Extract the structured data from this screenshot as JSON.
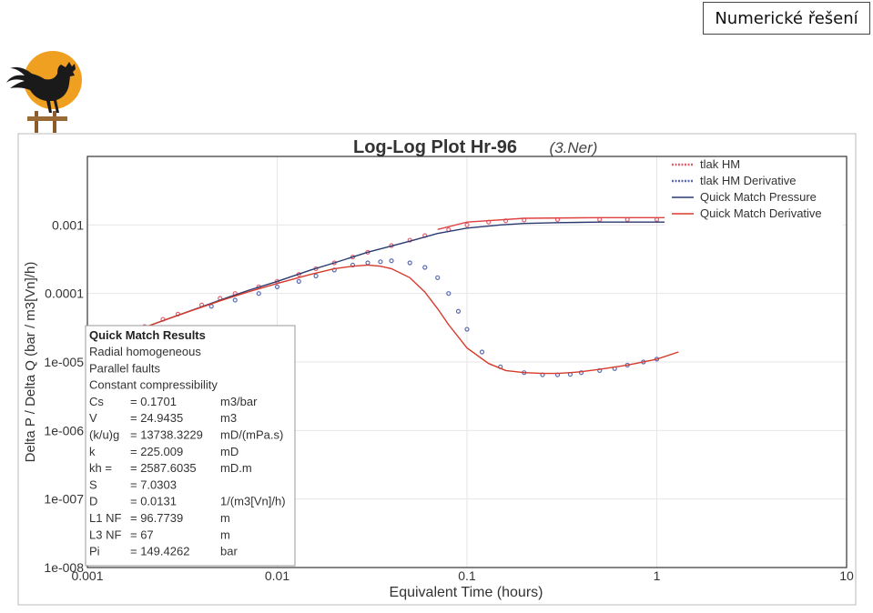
{
  "badge": {
    "label": "Numerické řešení"
  },
  "logo": {
    "icon": "rooster-sun-logo",
    "sun_color": "#F0A020",
    "bird_color": "#1a1a1a"
  },
  "colors": {
    "pressure_hm": "#e06070",
    "derivative_hm": "#5a6ab0",
    "qm_pressure": "#2a3a70",
    "qm_derivative": "#d63a2a",
    "frame": "#333333",
    "outer_border": "#bbbbbb"
  },
  "chart_data": {
    "type": "line",
    "title": "Log-Log Plot Hr-96",
    "title_annotation": "(3.Ner)",
    "xlabel": "Equivalent Time (hours)",
    "ylabel": "Delta P / Delta Q (bar / m3[Vn]/h)",
    "x_scale": "log",
    "y_scale": "log",
    "xlim": [
      0.001,
      10
    ],
    "ylim": [
      1e-08,
      0.01
    ],
    "x_ticks": [
      {
        "value": 0.001,
        "label": "0.001"
      },
      {
        "value": 0.01,
        "label": "0.01"
      },
      {
        "value": 0.1,
        "label": "0.1"
      },
      {
        "value": 1,
        "label": "1"
      },
      {
        "value": 10,
        "label": "10"
      }
    ],
    "y_ticks": [
      {
        "value": 0.001,
        "label": "0.001"
      },
      {
        "value": 0.0001,
        "label": "0.0001"
      },
      {
        "value": 1e-05,
        "label": "1e-005"
      },
      {
        "value": 1e-06,
        "label": "1e-006"
      },
      {
        "value": 1e-07,
        "label": "1e-007"
      },
      {
        "value": 1e-08,
        "label": "1e-008"
      }
    ],
    "grid": true,
    "legend_placement": "top-right",
    "legend": [
      "tlak HM",
      "tlak HM Derivative",
      "Quick Match Pressure",
      "Quick Match Derivative"
    ],
    "series": [
      {
        "name": "tlak HM",
        "style": "markers",
        "x": [
          0.0015,
          0.002,
          0.0025,
          0.003,
          0.004,
          0.005,
          0.006,
          0.008,
          0.01,
          0.013,
          0.016,
          0.02,
          0.025,
          0.03,
          0.04,
          0.05,
          0.06,
          0.08,
          0.1,
          0.13,
          0.16,
          0.2,
          0.3,
          0.5,
          0.7,
          1.0,
          1.3
        ],
        "y": [
          2.5e-05,
          3.3e-05,
          4.2e-05,
          5e-05,
          6.8e-05,
          8.5e-05,
          0.0001,
          0.000125,
          0.00015,
          0.00019,
          0.00023,
          0.00028,
          0.00034,
          0.0004,
          0.0005,
          0.0006,
          0.0007,
          0.00085,
          0.001,
          0.0011,
          0.00115,
          0.00118,
          0.0012,
          0.0012,
          0.0012,
          0.0012,
          0.0012
        ]
      },
      {
        "name": "tlak HM Derivative",
        "style": "markers",
        "x": [
          0.0045,
          0.006,
          0.008,
          0.01,
          0.013,
          0.016,
          0.02,
          0.025,
          0.03,
          0.035,
          0.04,
          0.05,
          0.06,
          0.07,
          0.08,
          0.09,
          0.1,
          0.12,
          0.15,
          0.2,
          0.25,
          0.3,
          0.35,
          0.4,
          0.5,
          0.6,
          0.7,
          0.85,
          1.0
        ],
        "y": [
          6.5e-05,
          8e-05,
          0.0001,
          0.000125,
          0.00015,
          0.00018,
          0.00022,
          0.00026,
          0.00028,
          0.00029,
          0.0003,
          0.00028,
          0.00024,
          0.00017,
          0.0001,
          5.5e-05,
          3e-05,
          1.4e-05,
          8.5e-06,
          7e-06,
          6.5e-06,
          6.5e-06,
          6.6e-06,
          7e-06,
          7.5e-06,
          8e-06,
          9e-06,
          1e-05,
          1.1e-05
        ]
      },
      {
        "name": "Quick Match Pressure",
        "style": "line",
        "x": [
          0.0015,
          0.002,
          0.003,
          0.005,
          0.007,
          0.01,
          0.015,
          0.02,
          0.03,
          0.05,
          0.07,
          0.1,
          0.15,
          0.2,
          0.3,
          0.5,
          1.0,
          2.0,
          5.0,
          9.5
        ],
        "y": [
          2.4e-05,
          3.2e-05,
          4.8e-05,
          8e-05,
          0.00011,
          0.00015,
          0.00022,
          0.00028,
          0.0004,
          0.00058,
          0.00075,
          0.0009,
          0.001,
          0.00105,
          0.00108,
          0.0011,
          0.0011,
          0.0011,
          0.0011,
          0.0011
        ]
      },
      {
        "name": "Quick Match Derivative",
        "style": "line",
        "x": [
          0.0015,
          0.002,
          0.003,
          0.005,
          0.007,
          0.01,
          0.015,
          0.02,
          0.025,
          0.03,
          0.035,
          0.04,
          0.05,
          0.06,
          0.07,
          0.08,
          0.1,
          0.13,
          0.16,
          0.2,
          0.25,
          0.3,
          0.35,
          0.4,
          0.5,
          0.7,
          1.0,
          1.3
        ],
        "y": [
          2.4e-05,
          3.2e-05,
          4.8e-05,
          7.8e-05,
          0.000105,
          0.00014,
          0.00019,
          0.00023,
          0.00025,
          0.00026,
          0.00025,
          0.00023,
          0.00017,
          0.000105,
          6e-05,
          3.5e-05,
          1.6e-05,
          9.5e-06,
          7.5e-06,
          7e-06,
          6.8e-06,
          6.8e-06,
          7e-06,
          7.2e-06,
          7.8e-06,
          9e-06,
          1.1e-05,
          1.4e-05
        ]
      },
      {
        "name": "",
        "style": "line",
        "color": "#e04040",
        "x": [
          0.07,
          0.1,
          0.2,
          0.5,
          1.0,
          2.0,
          5.0,
          9.5
        ],
        "y": [
          0.00086,
          0.0011,
          0.00125,
          0.00128,
          0.00128,
          0.00128,
          0.00128,
          0.00128
        ]
      }
    ]
  },
  "results_box": {
    "title": "Quick Match Results",
    "lines": [
      "Radial homogeneous",
      "Parallel faults",
      "Constant compressibility"
    ],
    "params": [
      {
        "name": "Cs",
        "value": "= 0.1701",
        "unit": "m3/bar"
      },
      {
        "name": "V",
        "value": "= 24.9435",
        "unit": "m3"
      },
      {
        "name": "(k/u)g",
        "value": "= 13738.3229",
        "unit": "mD/(mPa.s)"
      },
      {
        "name": "k",
        "value": "= 225.009",
        "unit": "mD"
      },
      {
        "name": "kh =",
        "value": "= 2587.6035",
        "unit": "mD.m"
      },
      {
        "name": "S",
        "value": "= 7.0303",
        "unit": ""
      },
      {
        "name": "D",
        "value": "= 0.0131",
        "unit": "1/(m3[Vn]/h)"
      },
      {
        "name": "L1 NF",
        "value": "= 96.7739",
        "unit": "m"
      },
      {
        "name": "L3 NF",
        "value": "= 67",
        "unit": "m"
      },
      {
        "name": "Pi",
        "value": "= 149.4262",
        "unit": "bar"
      }
    ]
  }
}
